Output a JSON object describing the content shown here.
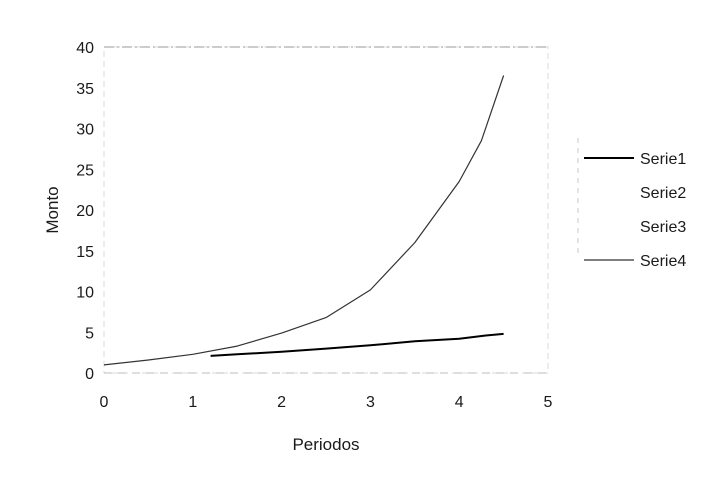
{
  "chart_data": {
    "type": "line",
    "xlabel": "Periodos",
    "ylabel": "Monto",
    "xlim": [
      0,
      5
    ],
    "ylim": [
      0,
      40
    ],
    "x_ticks": [
      0,
      1,
      2,
      3,
      4,
      5
    ],
    "y_ticks": [
      0,
      5,
      10,
      15,
      20,
      25,
      30,
      35,
      40
    ],
    "grid": false,
    "legend_position": "right",
    "series": [
      {
        "name": "Serie1",
        "color": "#000000",
        "points": [
          [
            1.2,
            2.1
          ],
          [
            1.5,
            2.3
          ],
          [
            2.0,
            2.6
          ],
          [
            2.5,
            3.0
          ],
          [
            3.0,
            3.4
          ],
          [
            3.5,
            3.9
          ],
          [
            4.0,
            4.2
          ],
          [
            4.3,
            4.6
          ],
          [
            4.5,
            4.8
          ]
        ]
      },
      {
        "name": "Serie2",
        "color": "#ffffff",
        "points": []
      },
      {
        "name": "Serie3",
        "color": "#ffffff",
        "points": []
      },
      {
        "name": "Serie4",
        "color": "#333333",
        "points": [
          [
            0,
            1.0
          ],
          [
            0.5,
            1.6
          ],
          [
            1.0,
            2.3
          ],
          [
            1.5,
            3.3
          ],
          [
            2.0,
            4.9
          ],
          [
            2.5,
            6.8
          ],
          [
            3.0,
            10.2
          ],
          [
            3.5,
            16.0
          ],
          [
            4.0,
            23.5
          ],
          [
            4.25,
            28.5
          ],
          [
            4.5,
            36.5
          ]
        ]
      }
    ]
  }
}
